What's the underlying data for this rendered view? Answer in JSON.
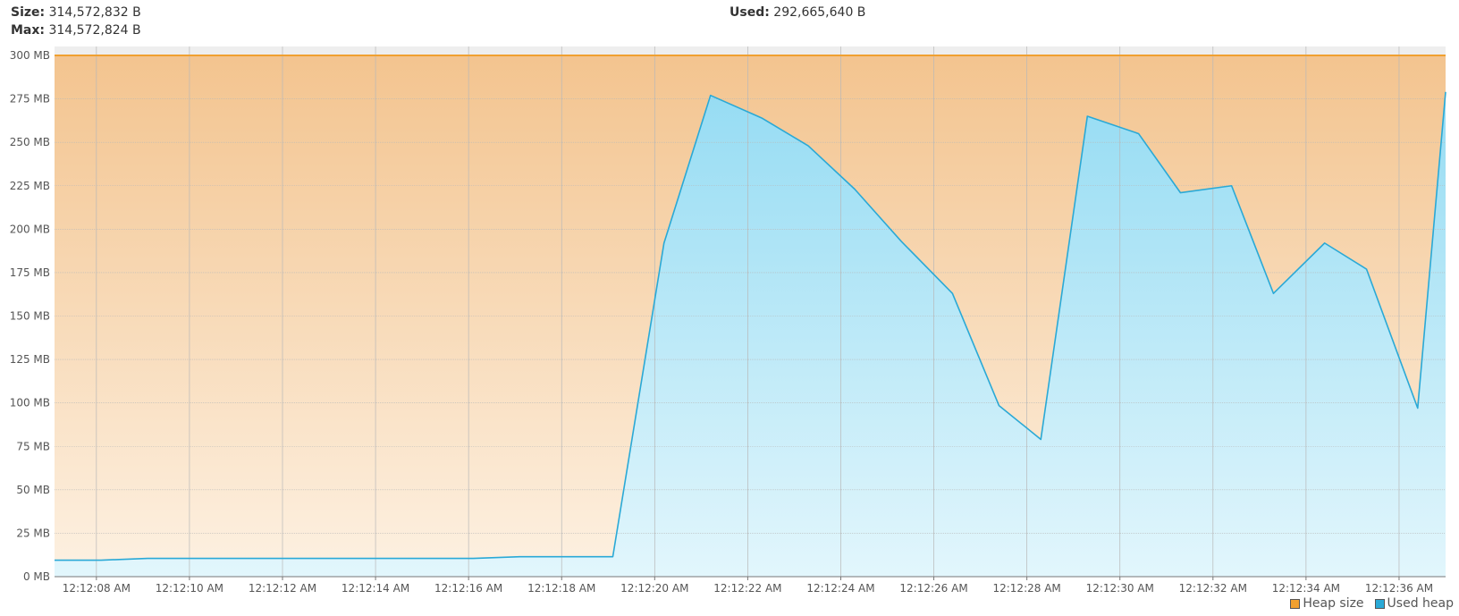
{
  "stats": {
    "size_label": "Size:",
    "size_value": "314,572,832 B",
    "max_label": "Max:",
    "max_value": "314,572,824 B",
    "used_label": "Used:",
    "used_value": "292,665,640 B"
  },
  "chart_data": {
    "type": "area",
    "y_unit": "MB",
    "ylim": [
      0,
      300
    ],
    "y_ticks": [
      "0 MB",
      "25 MB",
      "50 MB",
      "75 MB",
      "100 MB",
      "125 MB",
      "150 MB",
      "175 MB",
      "200 MB",
      "225 MB",
      "250 MB",
      "275 MB",
      "300 MB"
    ],
    "x_ticks": [
      "12:12:08 AM",
      "12:12:10 AM",
      "12:12:12 AM",
      "12:12:14 AM",
      "12:12:16 AM",
      "12:12:18 AM",
      "12:12:20 AM",
      "12:12:22 AM",
      "12:12:24 AM",
      "12:12:26 AM",
      "12:12:28 AM",
      "12:12:30 AM",
      "12:12:32 AM",
      "12:12:34 AM",
      "12:12:36 AM"
    ],
    "x_start_seconds": 7.1,
    "x_end_seconds": 37.0,
    "grid": true,
    "legend_position": "bottom-right",
    "series": [
      {
        "name": "Heap size",
        "color": "#f0a030",
        "x": [
          7.1,
          37.0
        ],
        "values": [
          300,
          300
        ]
      },
      {
        "name": "Used heap",
        "color": "#2aa9d6",
        "x": [
          7.1,
          8.1,
          9.1,
          10.1,
          11.1,
          12.1,
          13.1,
          14.1,
          15.1,
          16.1,
          17.1,
          18.1,
          19.1,
          20.2,
          21.2,
          22.3,
          23.3,
          24.3,
          25.3,
          26.4,
          27.4,
          28.3,
          29.3,
          30.4,
          31.3,
          32.4,
          33.3,
          34.4,
          35.3,
          36.4,
          37.0
        ],
        "values": [
          9.5,
          9.5,
          10.5,
          10.5,
          10.5,
          10.5,
          10.5,
          10.5,
          10.5,
          10.5,
          11.5,
          11.5,
          11.5,
          192,
          277,
          264,
          248,
          223,
          193,
          163,
          98.5,
          79,
          265,
          255,
          221,
          225,
          163,
          192,
          177,
          97,
          279
        ]
      }
    ]
  }
}
